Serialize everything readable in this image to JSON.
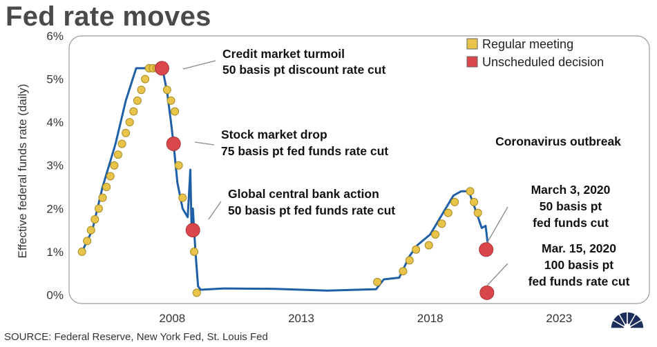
{
  "header": {
    "title": "Fed rate moves"
  },
  "footer": {
    "source": "SOURCE: Federal Reserve, New York Fed, St. Louis Fed"
  },
  "logo": {
    "text": "CNBC"
  },
  "colors": {
    "line": "#1f5fa6",
    "regular": "#e8c44a",
    "unscheduled": "#d9474b"
  },
  "chart_data": {
    "type": "line",
    "title": "Fed rate moves",
    "ylabel": "Effective federal funds rate (daily)",
    "xlabel": "",
    "xlim": [
      2004.0,
      2026.5
    ],
    "ylim": [
      -0.2,
      6.0
    ],
    "x_ticks": [
      2008,
      2013,
      2018,
      2023
    ],
    "x_tick_labels": [
      "2008",
      "2013",
      "2018",
      "2023"
    ],
    "y_ticks": [
      0,
      1,
      2,
      3,
      4,
      5,
      6
    ],
    "y_tick_labels": [
      "0%",
      "1%",
      "2%",
      "3%",
      "4%",
      "5%",
      "6%"
    ],
    "grid": false,
    "legend": {
      "placement": "top-right",
      "entries": [
        {
          "name": "Regular meeting",
          "color": "#e8c44a"
        },
        {
          "name": "Unscheduled decision",
          "color": "#d9474b"
        }
      ]
    },
    "series": [
      {
        "name": "Effective federal funds rate",
        "x": [
          2004.5,
          2004.9,
          2005.3,
          2005.8,
          2006.2,
          2006.6,
          2007.0,
          2007.4,
          2007.6,
          2007.8,
          2007.95,
          2008.05,
          2008.2,
          2008.4,
          2008.6,
          2008.7,
          2008.75,
          2008.8,
          2008.9,
          2009.0,
          2009.1,
          2010,
          2012,
          2014,
          2015.9,
          2016.2,
          2016.8,
          2017.2,
          2017.5,
          2018.0,
          2018.5,
          2018.9,
          2019.2,
          2019.5,
          2019.8,
          2020.0,
          2020.15,
          2020.25
        ],
        "y": [
          1.0,
          1.5,
          2.5,
          3.5,
          4.5,
          5.25,
          5.25,
          5.25,
          5.3,
          4.7,
          4.0,
          3.5,
          2.6,
          2.0,
          1.8,
          2.9,
          1.5,
          2.0,
          1.0,
          0.2,
          0.12,
          0.15,
          0.14,
          0.1,
          0.13,
          0.36,
          0.4,
          0.9,
          1.15,
          1.4,
          1.9,
          2.3,
          2.4,
          2.4,
          1.9,
          1.55,
          1.6,
          1.1
        ]
      }
    ],
    "regular_meetings": {
      "x": [
        2004.5,
        2004.7,
        2004.85,
        2005.0,
        2005.15,
        2005.3,
        2005.45,
        2005.6,
        2005.75,
        2005.9,
        2006.05,
        2006.2,
        2006.35,
        2006.5,
        2006.65,
        2006.8,
        2006.95,
        2007.1,
        2007.25,
        2007.4,
        2007.55,
        2007.7,
        2007.8,
        2007.95,
        2008.1,
        2008.25,
        2008.4,
        2008.85,
        2008.95,
        2015.95,
        2016.95,
        2017.2,
        2017.45,
        2017.95,
        2018.2,
        2018.45,
        2018.7,
        2018.95,
        2019.55,
        2019.7,
        2019.85
      ],
      "y": [
        1.0,
        1.25,
        1.5,
        1.75,
        2.0,
        2.25,
        2.5,
        2.75,
        3.0,
        3.25,
        3.5,
        3.75,
        4.0,
        4.25,
        4.5,
        4.75,
        5.0,
        5.25,
        5.25,
        5.25,
        5.25,
        5.25,
        4.75,
        4.5,
        4.25,
        3.0,
        2.25,
        1.0,
        0.05,
        0.3,
        0.55,
        0.8,
        1.05,
        1.15,
        1.4,
        1.65,
        1.9,
        2.15,
        2.4,
        2.15,
        1.9
      ]
    },
    "unscheduled_decisions": {
      "x": [
        2007.6,
        2008.05,
        2008.8,
        2020.17,
        2020.2
      ],
      "y": [
        5.25,
        3.5,
        1.5,
        1.05,
        0.05
      ]
    },
    "annotations": [
      {
        "text": [
          "Credit market turmoil",
          "50 basis pt discount rate cut"
        ],
        "target_x": 2007.6,
        "target_y": 5.25
      },
      {
        "text": [
          "Stock market drop",
          "75 basis pt fed funds rate cut"
        ],
        "target_x": 2008.05,
        "target_y": 3.5
      },
      {
        "text": [
          "Global central bank action",
          "50 basis pt fed funds rate cut"
        ],
        "target_x": 2008.8,
        "target_y": 1.5
      },
      {
        "text": [
          "Coronavirus outbreak"
        ]
      },
      {
        "text": [
          "March 3, 2020",
          "50 basis pt",
          "fed funds cut"
        ],
        "target_x": 2020.17,
        "target_y": 1.05
      },
      {
        "text": [
          "Mar. 15, 2020",
          "100 basis pt",
          "fed funds rate cut"
        ],
        "target_x": 2020.2,
        "target_y": 0.05
      }
    ]
  }
}
